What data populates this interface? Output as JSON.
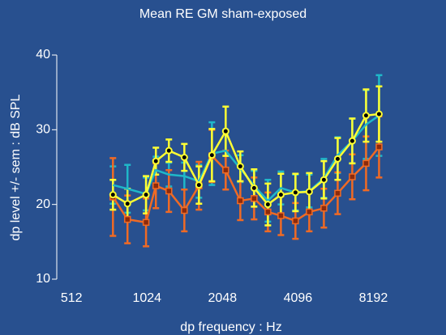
{
  "chart_data": {
    "type": "line",
    "title": "Mean RE GM sham-exposed",
    "x_label": "dp frequency : Hz",
    "y_label": "dp level +/- sem : dB SPL",
    "x_scale": "log",
    "x_log_base": 2,
    "xlim": [
      447,
      11000
    ],
    "xticks": [
      512,
      1024,
      2048,
      4096,
      8192
    ],
    "ylim": [
      10,
      40
    ],
    "yticks": [
      10,
      20,
      30,
      40
    ],
    "x": [
      749,
      856,
      1015,
      1111,
      1252,
      1443,
      1650,
      1859,
      2110,
      2413,
      2739,
      3109,
      3503,
      4005,
      4546,
      5199,
      5903,
      6748,
      7660,
      8630
    ],
    "series": [
      {
        "color": "#1fb8c9",
        "marker": "none",
        "values": [
          22.6,
          22.1,
          21.4,
          24.6,
          24.0,
          23.8,
          23.1,
          26.8,
          27.2,
          24.8,
          22.5,
          20.5,
          22.2,
          21.6,
          21.8,
          23.5,
          26.6,
          28.5,
          30.7,
          31.9
        ],
        "errors": [
          2.5,
          3.2,
          2.2,
          1.8,
          1.6,
          1.8,
          2.2,
          4.2,
          2.8,
          1.8,
          2.0,
          2.8,
          2.2,
          2.4,
          2.2,
          2.6,
          2.4,
          3.0,
          4.6,
          5.4
        ]
      },
      {
        "color": "#f06a24",
        "marker": "square",
        "marker_color": "#8c2a0c",
        "values": [
          21.0,
          18.0,
          17.6,
          22.5,
          21.8,
          19.2,
          22.5,
          26.5,
          24.6,
          20.5,
          20.8,
          19.0,
          18.5,
          17.8,
          19.0,
          19.5,
          21.5,
          23.7,
          25.5,
          27.7
        ],
        "errors": [
          5.2,
          3.2,
          3.2,
          3.0,
          2.8,
          2.8,
          3.2,
          3.5,
          2.6,
          2.6,
          2.8,
          2.6,
          2.6,
          2.4,
          2.6,
          2.6,
          2.8,
          3.0,
          3.6,
          4.1
        ]
      },
      {
        "color": "#ffff33",
        "marker": "circle",
        "marker_color": "#000000",
        "values": [
          21.3,
          20.1,
          21.3,
          25.8,
          27.2,
          26.3,
          22.6,
          26.6,
          29.8,
          25.1,
          22.2,
          20.0,
          21.3,
          21.6,
          21.7,
          23.3,
          26.1,
          28.5,
          31.9,
          32.1
        ],
        "errors": [
          2.0,
          2.0,
          2.5,
          1.8,
          1.5,
          1.8,
          2.5,
          3.5,
          3.3,
          2.0,
          2.5,
          2.8,
          2.8,
          2.5,
          2.5,
          2.5,
          2.8,
          3.0,
          3.5,
          3.7
        ]
      }
    ]
  }
}
